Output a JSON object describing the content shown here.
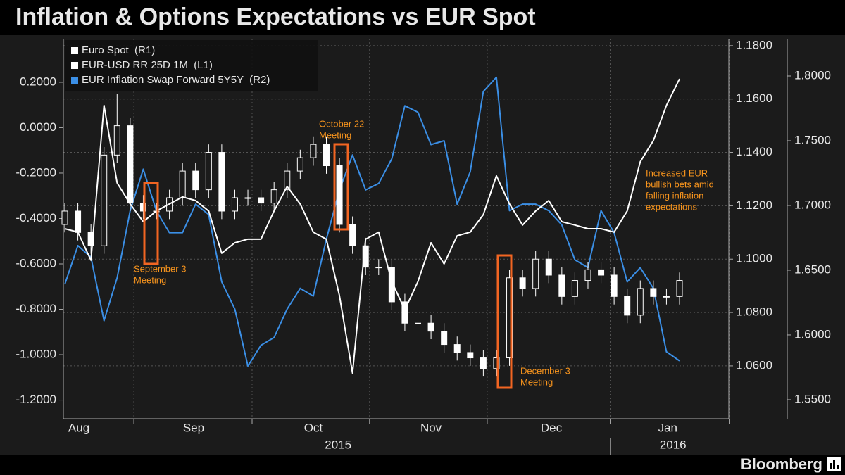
{
  "chart_data": {
    "type": "candlestick-lines",
    "title": "Inflation & Options Expectations vs EUR Spot",
    "source": "Bloomberg",
    "categories": [
      null,
      null,
      null,
      null,
      null,
      null,
      null,
      null,
      null,
      null,
      null,
      null,
      null,
      null,
      null,
      null,
      null,
      null,
      null,
      null,
      null,
      null,
      null,
      null,
      null,
      null,
      null,
      null,
      null,
      null,
      null,
      null,
      null,
      null,
      null,
      null,
      null,
      null,
      null,
      null,
      null,
      null,
      null,
      null,
      null,
      null,
      null,
      null
    ],
    "xticks": [
      {
        "value": 1.08,
        "label": "Aug"
      },
      {
        "value": 9.85,
        "label": "Sep"
      },
      {
        "value": 19.0,
        "label": "Oct"
      },
      {
        "value": 28.0,
        "label": "Nov"
      },
      {
        "value": 37.2,
        "label": "Dec"
      },
      {
        "value": 46.1,
        "label": "Jan"
      }
    ],
    "year_ticks": [
      {
        "value": 20.9,
        "label": "2015"
      },
      {
        "value": 46.5,
        "label": "2016"
      }
    ],
    "month_starts": [
      5.28,
      14.32,
      23.3,
      32.3,
      41.7,
      50.8
    ],
    "ylim": [
      -1.282,
      0.392
    ],
    "yticks": [
      {
        "value": 0.2,
        "label": "0.2000"
      },
      {
        "value": 0,
        "label": "0.0000"
      },
      {
        "value": -0.2,
        "label": "-0.2000"
      },
      {
        "value": -0.4,
        "label": "-0.4000"
      },
      {
        "value": -0.6,
        "label": "-0.6000"
      },
      {
        "value": -0.8,
        "label": "-0.8000"
      },
      {
        "value": -1.0,
        "label": "-1.0000"
      },
      {
        "value": -1.2,
        "label": "-1.2000"
      }
    ],
    "y2lim": [
      1.0402,
      1.1826
    ],
    "y2ticks": [
      {
        "value": 1.18,
        "label": "1.1800"
      },
      {
        "value": 1.16,
        "label": "1.1600"
      },
      {
        "value": 1.14,
        "label": "1.1400"
      },
      {
        "value": 1.12,
        "label": "1.1200"
      },
      {
        "value": 1.1,
        "label": "1.1000"
      },
      {
        "value": 1.08,
        "label": "1.0800"
      },
      {
        "value": 1.06,
        "label": "1.0600"
      }
    ],
    "y3lim": [
      1.5353,
      1.8288
    ],
    "y3ticks": [
      {
        "value": 1.8,
        "label": "1.8000"
      },
      {
        "value": 1.75,
        "label": "1.7500"
      },
      {
        "value": 1.7,
        "label": "1.7000"
      },
      {
        "value": 1.65,
        "label": "1.6500"
      },
      {
        "value": 1.6,
        "label": "1.6000"
      },
      {
        "value": 1.55,
        "label": "1.5500"
      }
    ],
    "grid": true,
    "legend": "top-left",
    "series": [
      {
        "name": "Euro Spot  (R1)",
        "color": "#ffffff",
        "axis": "y2",
        "kind": "candlestick",
        "open": [
          1.113,
          1.118,
          1.11,
          1.105,
          1.139,
          1.15,
          1.121,
          1.118,
          1.118,
          1.123,
          1.133,
          1.126,
          1.14,
          1.118,
          1.123,
          1.123,
          1.121,
          1.126,
          1.133,
          1.138,
          1.143,
          1.135,
          1.113,
          1.105,
          1.097,
          1.097,
          1.084,
          1.076,
          1.076,
          1.073,
          1.068,
          1.065,
          1.063,
          1.059,
          1.063,
          1.093,
          1.089,
          1.1,
          1.094,
          1.086,
          1.092,
          1.096,
          1.094,
          1.086,
          1.079,
          1.089,
          1.086,
          1.086
        ],
        "high": [
          1.121,
          1.121,
          1.113,
          1.142,
          1.162,
          1.153,
          1.124,
          1.121,
          1.126,
          1.136,
          1.136,
          1.143,
          1.143,
          1.126,
          1.126,
          1.126,
          1.129,
          1.136,
          1.141,
          1.146,
          1.146,
          1.138,
          1.116,
          1.108,
          1.1,
          1.1,
          1.087,
          1.079,
          1.079,
          1.076,
          1.071,
          1.068,
          1.066,
          1.066,
          1.096,
          1.096,
          1.103,
          1.103,
          1.097,
          1.095,
          1.099,
          1.099,
          1.097,
          1.089,
          1.092,
          1.092,
          1.089,
          1.095
        ],
        "low": [
          1.11,
          1.107,
          1.102,
          1.102,
          1.136,
          1.118,
          1.115,
          1.115,
          1.115,
          1.12,
          1.123,
          1.123,
          1.115,
          1.115,
          1.12,
          1.118,
          1.118,
          1.123,
          1.13,
          1.135,
          1.132,
          1.11,
          1.102,
          1.094,
          1.094,
          1.081,
          1.073,
          1.073,
          1.07,
          1.065,
          1.062,
          1.06,
          1.056,
          1.056,
          1.06,
          1.086,
          1.086,
          1.091,
          1.083,
          1.083,
          1.089,
          1.091,
          1.083,
          1.076,
          1.076,
          1.083,
          1.083,
          1.083
        ],
        "close": [
          1.118,
          1.11,
          1.105,
          1.139,
          1.15,
          1.121,
          1.118,
          1.118,
          1.123,
          1.133,
          1.126,
          1.14,
          1.118,
          1.123,
          1.123,
          1.121,
          1.126,
          1.133,
          1.138,
          1.143,
          1.135,
          1.113,
          1.105,
          1.097,
          1.097,
          1.084,
          1.076,
          1.076,
          1.073,
          1.068,
          1.065,
          1.063,
          1.059,
          1.063,
          1.093,
          1.089,
          1.1,
          1.094,
          1.086,
          1.092,
          1.096,
          1.094,
          1.086,
          1.079,
          1.089,
          1.086,
          1.086,
          1.092
        ]
      },
      {
        "name": "EUR-USD RR 25D 1M  (L1)",
        "color": "#ffffff",
        "axis": "y",
        "kind": "line",
        "values": [
          -0.445,
          -0.46,
          -0.584,
          0.098,
          -0.243,
          -0.336,
          -0.414,
          -0.367,
          -0.336,
          -0.305,
          -0.321,
          -0.367,
          -0.553,
          -0.507,
          -0.491,
          -0.491,
          -0.367,
          -0.259,
          -0.336,
          -0.46,
          -0.491,
          -0.74,
          -1.081,
          -0.491,
          -0.46,
          -0.678,
          -0.802,
          -0.678,
          -0.507,
          -0.6,
          -0.476,
          -0.46,
          -0.383,
          -0.212,
          -0.336,
          -0.429,
          -0.367,
          -0.321,
          -0.414,
          -0.429,
          -0.445,
          -0.445,
          -0.46,
          -0.367,
          -0.15,
          -0.057,
          0.098,
          0.215
        ]
      },
      {
        "name": "EUR Inflation Swap Forward 5Y5Y  (R2)",
        "color": "#3b8fe6",
        "axis": "y3",
        "kind": "line",
        "values": [
          1.639,
          1.669,
          1.66,
          1.611,
          1.644,
          1.696,
          1.728,
          1.696,
          1.679,
          1.679,
          1.701,
          1.693,
          1.641,
          1.62,
          1.576,
          1.592,
          1.598,
          1.62,
          1.636,
          1.63,
          1.674,
          1.712,
          1.739,
          1.712,
          1.717,
          1.736,
          1.777,
          1.772,
          1.747,
          1.75,
          1.701,
          1.726,
          1.788,
          1.799,
          1.696,
          1.701,
          1.701,
          1.696,
          1.685,
          1.658,
          1.652,
          1.696,
          1.679,
          1.641,
          1.652,
          1.636,
          1.587,
          1.58
        ]
      }
    ],
    "annotations": [
      {
        "lines": [
          "September 3",
          "Meeting"
        ]
      },
      {
        "lines": [
          "October 22",
          "Meeting"
        ]
      },
      {
        "lines": [
          "December 3",
          "Meeting"
        ]
      },
      {
        "lines": [
          "Increased EUR",
          "bullish bets amid",
          "falling inflation",
          "expectations"
        ]
      }
    ]
  }
}
